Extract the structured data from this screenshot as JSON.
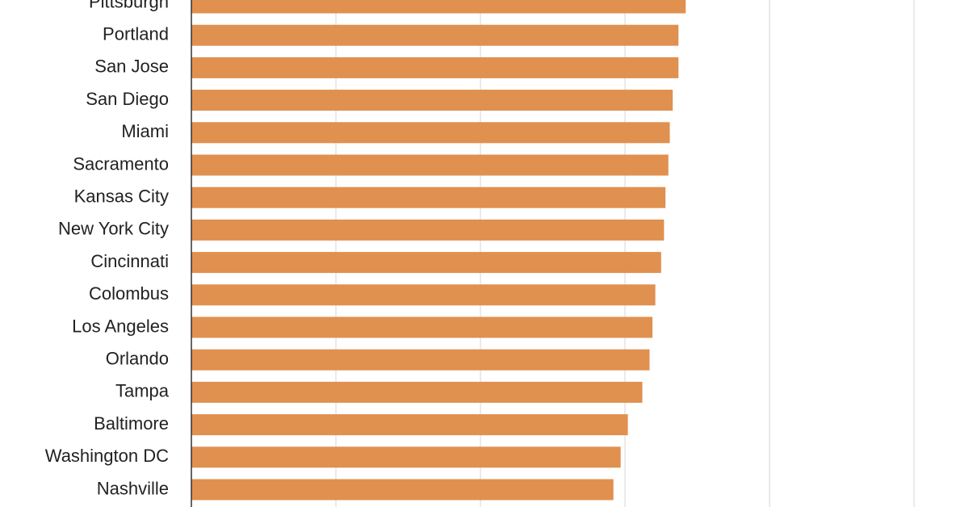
{
  "chart_data": {
    "type": "bar",
    "orientation": "horizontal",
    "categories": [
      "Pittsburgh",
      "Portland",
      "San Jose",
      "San Diego",
      "Miami",
      "Sacramento",
      "Kansas City",
      "New York City",
      "Cincinnati",
      "Colombus",
      "Los Angeles",
      "Orlando",
      "Tampa",
      "Baltimore",
      "Washington DC",
      "Nashville"
    ],
    "values": [
      3.42,
      3.37,
      3.37,
      3.33,
      3.31,
      3.3,
      3.28,
      3.27,
      3.25,
      3.21,
      3.19,
      3.17,
      3.12,
      3.02,
      2.97,
      2.92
    ],
    "color": "#e0904f",
    "xlim": [
      0,
      5.38
    ],
    "xticks": [
      0,
      1,
      2,
      3,
      4,
      5
    ],
    "grid": true
  }
}
